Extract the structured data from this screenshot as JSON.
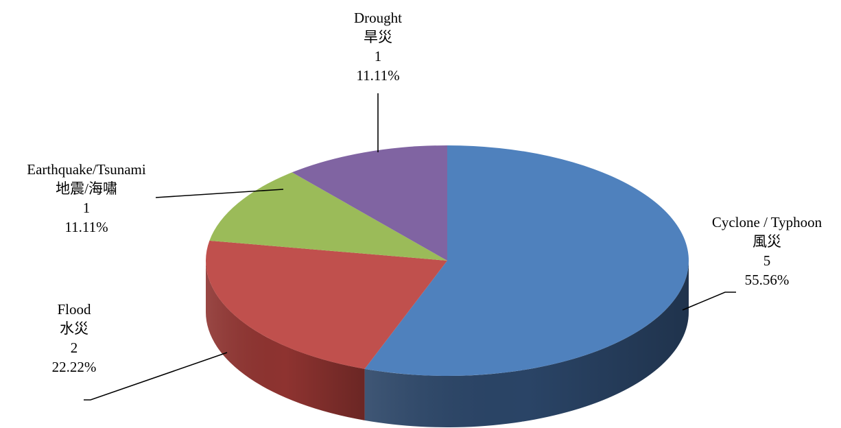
{
  "chart_data": {
    "type": "pie",
    "style": "3d",
    "title": "",
    "total": 9,
    "slices": [
      {
        "name": "Cyclone / Typhoon",
        "name_zh": "風災",
        "value": 5,
        "percent": "55.56%",
        "color": "#4f81bd",
        "side_color": "#2a4466"
      },
      {
        "name": "Flood",
        "name_zh": "水災",
        "value": 2,
        "percent": "22.22%",
        "color": "#c0504d",
        "side_color": "#8e3330"
      },
      {
        "name": "Earthquake/Tsunami",
        "name_zh": "地震/海嘯",
        "value": 1,
        "percent": "11.11%",
        "color": "#9bbb59",
        "side_color": "#6e8a3c"
      },
      {
        "name": "Drought",
        "name_zh": "旱災",
        "value": 1,
        "percent": "11.11%",
        "color": "#8064a2",
        "side_color": "#5a4577"
      }
    ]
  }
}
